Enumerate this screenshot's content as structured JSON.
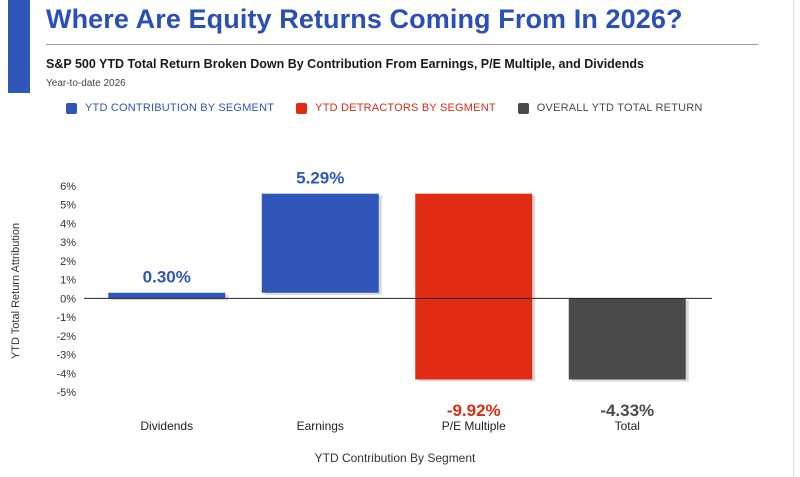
{
  "header": {
    "title": "Where Are Equity Returns Coming From In 2026?",
    "subtitle": "S&P 500 YTD Total Return Broken Down By Contribution From Earnings, P/E Multiple, and Dividends",
    "caption": "Year-to-date 2026"
  },
  "legend": [
    {
      "label": "YTD CONTRIBUTION BY SEGMENT",
      "color": "#2f56b8",
      "text_color": "#2f56b8"
    },
    {
      "label": "YTD DETRACTORS BY SEGMENT",
      "color": "#e02b12",
      "text_color": "#e02b12"
    },
    {
      "label": "OVERALL YTD TOTAL RETURN",
      "color": "#4a4a4a",
      "text_color": "#4a4a4a"
    }
  ],
  "chart_data": {
    "type": "bar",
    "subtype": "waterfall",
    "title": "Where Are Equity Returns Coming From In 2026?",
    "xlabel": "YTD Contribution By Segment",
    "ylabel": "YTD Total Return Attribution",
    "ylim": [
      -5,
      6
    ],
    "yticks": [
      6,
      5,
      4,
      3,
      2,
      1,
      0,
      -1,
      -2,
      -3,
      -4,
      -5
    ],
    "ytick_labels": [
      "6%",
      "5%",
      "4%",
      "3%",
      "2%",
      "1%",
      "0%",
      "-1%",
      "-2%",
      "-3%",
      "-4%",
      "-5%"
    ],
    "grid": false,
    "categories": [
      "Dividends",
      "Earnings",
      "P/E Multiple",
      "Total"
    ],
    "values": [
      0.3,
      5.29,
      -9.92,
      -4.33
    ],
    "value_labels": [
      "0.30%",
      "5.29%",
      "-9.92%",
      "-4.33%"
    ],
    "bar_ranges": [
      [
        0,
        0.3
      ],
      [
        0.3,
        5.59
      ],
      [
        5.59,
        -4.33
      ],
      [
        0,
        -4.33
      ]
    ],
    "bar_colors": [
      "#2f56b8",
      "#2f56b8",
      "#e02b12",
      "#4a4a4a"
    ],
    "label_colors": [
      "#2f56b8",
      "#2f56b8",
      "#e02b12",
      "#4a4a4a"
    ],
    "label_positions": [
      "above",
      "above",
      "below",
      "below"
    ]
  }
}
